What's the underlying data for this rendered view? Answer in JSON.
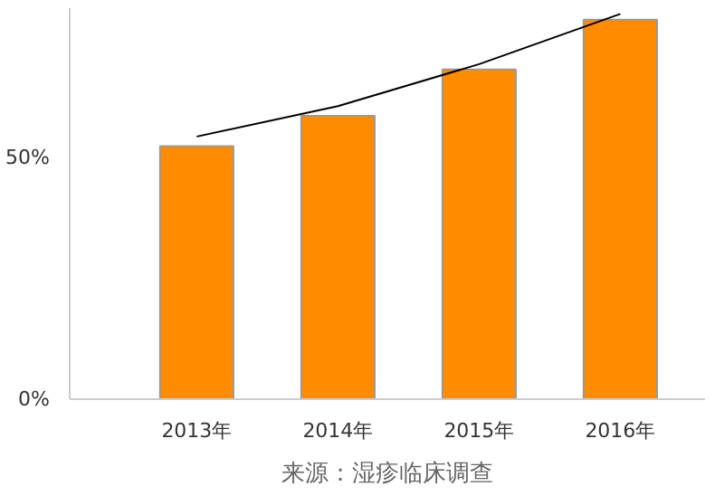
{
  "chart_data": {
    "type": "bar",
    "categories": [
      "2013年",
      "2014年",
      "2015年",
      "2016年"
    ],
    "series": [
      {
        "color": "#ff8c00",
        "values": [
          52.4,
          58.7,
          68.3,
          78.6
        ]
      },
      {
        "type": "line",
        "color": "#000000",
        "values": [
          54.4,
          60.7,
          69.4,
          79.8
        ]
      }
    ],
    "ylim": [
      0,
      81
    ],
    "yticks": [
      {
        "value": 0,
        "label": "0%"
      },
      {
        "value": 50,
        "label": "50%"
      }
    ],
    "grid": false,
    "annotations": [
      "来源：湿疹临床调查"
    ]
  }
}
